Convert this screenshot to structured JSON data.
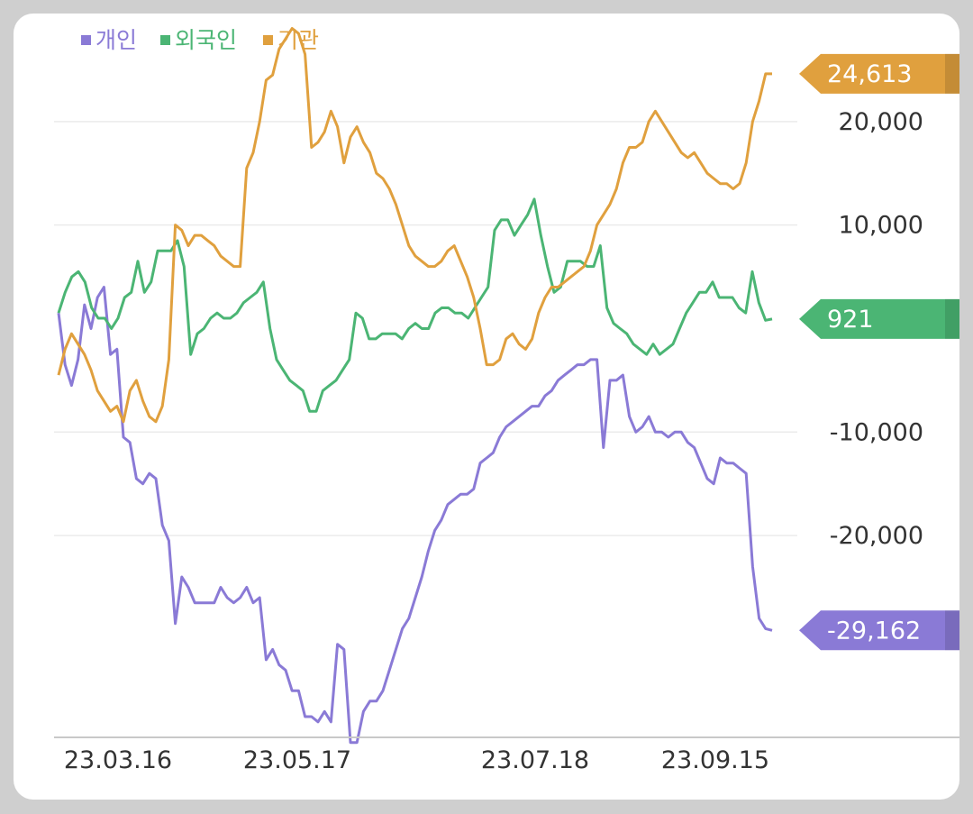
{
  "chart_data": {
    "type": "line",
    "x_tick_labels": [
      "23.03.16",
      "23.05.17",
      "23.07.18",
      "23.09.15"
    ],
    "y_tick_labels": [
      "20,000",
      "10,000",
      "-10,000",
      "-20,000"
    ],
    "y_ticks": [
      20000,
      10000,
      -10000,
      -20000
    ],
    "ylim": [
      -39500,
      30000
    ],
    "grid": true,
    "legend_position": "top-left",
    "series": [
      {
        "name": "개인",
        "color": "#8a7ad6",
        "last_value": -29162,
        "last_label": "-29,162",
        "values": [
          1500,
          -3500,
          -5500,
          -3000,
          2300,
          0,
          3000,
          4000,
          -2500,
          -2000,
          -10500,
          -11000,
          -14500,
          -15000,
          -14000,
          -14500,
          -19000,
          -20500,
          -28500,
          -24000,
          -25000,
          -26500,
          -26500,
          -26500,
          -26500,
          -25000,
          -26000,
          -26500,
          -26000,
          -25000,
          -26500,
          -26000,
          -32000,
          -31000,
          -32500,
          -33000,
          -35000,
          -35000,
          -37500,
          -37500,
          -38000,
          -37000,
          -38000,
          -30500,
          -31000,
          -40000,
          -40000,
          -37000,
          -36000,
          -36000,
          -35000,
          -33000,
          -31000,
          -29000,
          -28000,
          -26000,
          -24000,
          -21500,
          -19500,
          -18500,
          -17000,
          -16500,
          -16000,
          -16000,
          -15500,
          -13000,
          -12500,
          -12000,
          -10500,
          -9500,
          -9000,
          -8500,
          -8000,
          -7500,
          -7500,
          -6500,
          -6000,
          -5000,
          -4500,
          -4000,
          -3500,
          -3500,
          -3000,
          -3000,
          -11500,
          -5000,
          -5000,
          -4500,
          -8500,
          -10000,
          -9500,
          -8500,
          -10000,
          -10000,
          -10500,
          -10000,
          -10000,
          -11000,
          -11500,
          -13000,
          -14500,
          -15000,
          -12500,
          -13000,
          -13000,
          -13500,
          -14000,
          -23000,
          -28000,
          -29000,
          -29162
        ]
      },
      {
        "name": "외국인",
        "color": "#4bb574",
        "last_value": 921,
        "last_label": "921",
        "values": [
          1500,
          3500,
          5000,
          5500,
          4500,
          2000,
          1000,
          1000,
          0,
          1000,
          3000,
          3500,
          6500,
          3500,
          4500,
          7500,
          7500,
          7500,
          8500,
          6000,
          -2500,
          -500,
          0,
          1000,
          1500,
          1000,
          1000,
          1500,
          2500,
          3000,
          3500,
          4500,
          0,
          -3000,
          -4000,
          -5000,
          -5500,
          -6000,
          -8000,
          -8000,
          -6000,
          -5500,
          -5000,
          -4000,
          -3000,
          1500,
          1000,
          -1000,
          -1000,
          -500,
          -500,
          -500,
          -1000,
          0,
          500,
          0,
          0,
          1500,
          2000,
          2000,
          1500,
          1500,
          1000,
          2000,
          3000,
          4000,
          9500,
          10500,
          10500,
          9000,
          10000,
          11000,
          12500,
          9000,
          6000,
          3500,
          4000,
          6500,
          6500,
          6500,
          6000,
          6000,
          8000,
          2000,
          500,
          0,
          -500,
          -1500,
          -2000,
          -2500,
          -1500,
          -2500,
          -2000,
          -1500,
          0,
          1500,
          2500,
          3500,
          3500,
          4500,
          3000,
          3000,
          3000,
          2000,
          1500,
          5500,
          2500,
          800,
          921
        ]
      },
      {
        "name": "기관",
        "color": "#e0a03e",
        "last_value": 24613,
        "last_label": "24,613",
        "values": [
          -4500,
          -2000,
          -500,
          -1500,
          -2500,
          -4000,
          -6000,
          -7000,
          -8000,
          -7500,
          -9000,
          -6000,
          -5000,
          -7000,
          -8500,
          -9000,
          -7500,
          -3000,
          10000,
          9500,
          8000,
          9000,
          9000,
          8500,
          8000,
          7000,
          6500,
          6000,
          6000,
          15500,
          17000,
          20000,
          24000,
          24500,
          27000,
          28000,
          29000,
          28500,
          26500,
          17500,
          18000,
          19000,
          21000,
          19500,
          16000,
          18500,
          19500,
          18000,
          17000,
          15000,
          14500,
          13500,
          12000,
          10000,
          8000,
          7000,
          6500,
          6000,
          6000,
          6500,
          7500,
          8000,
          6500,
          5000,
          3000,
          0,
          -3500,
          -3500,
          -3000,
          -1000,
          -500,
          -1500,
          -2000,
          -1000,
          1500,
          3000,
          4000,
          4000,
          4500,
          5000,
          5500,
          6000,
          7500,
          10000,
          11000,
          12000,
          13500,
          16000,
          17500,
          17500,
          18000,
          20000,
          21000,
          20000,
          19000,
          18000,
          17000,
          16500,
          17000,
          16000,
          15000,
          14500,
          14000,
          14000,
          13500,
          14000,
          16000,
          20000,
          22000,
          24613,
          24613
        ]
      }
    ]
  }
}
